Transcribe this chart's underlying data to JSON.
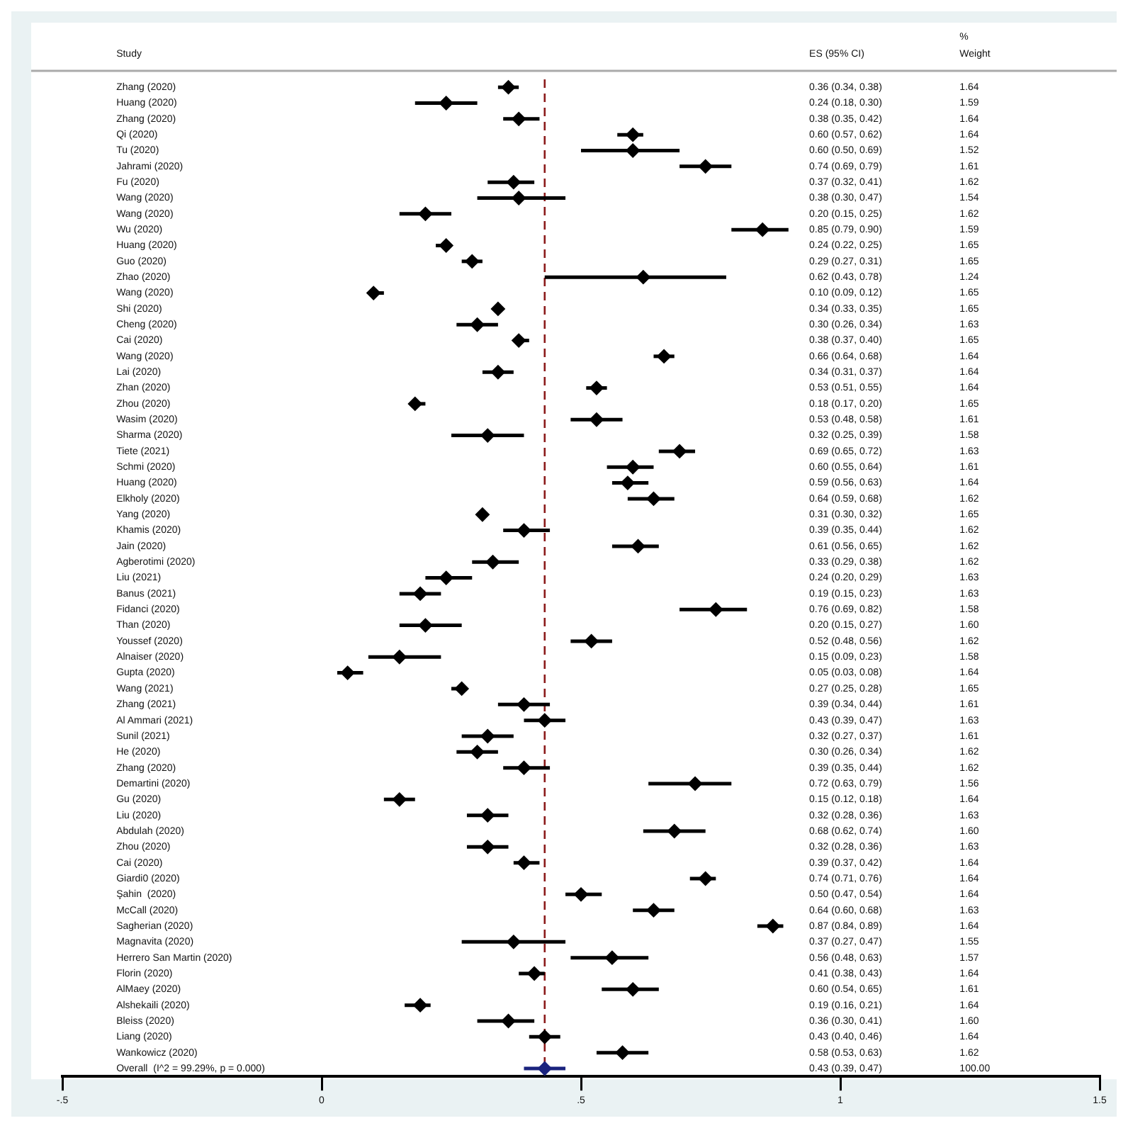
{
  "chart_data": {
    "type": "scatter",
    "orientation": "horizontal",
    "categories": [
      "Zhang (2020)",
      "Huang (2020)",
      "Zhang (2020)",
      "Qi (2020)",
      "Tu (2020)",
      "Jahrami (2020)",
      "Fu (2020)",
      "Wang (2020)",
      "Wang (2020)",
      "Wu (2020)",
      "Huang (2020)",
      "Guo (2020)",
      "Zhao (2020)",
      "Wang (2020)",
      "Shi (2020)",
      "Cheng (2020)",
      "Cai (2020)",
      "Wang (2020)",
      "Lai (2020)",
      "Zhan (2020)",
      "Zhou (2020)",
      "Wasim (2020)",
      "Sharma (2020)",
      "Tiete (2021)",
      "Schmi (2020)",
      "Huang (2020)",
      "Elkholy (2020)",
      "Yang (2020)",
      "Khamis (2020)",
      "Jain (2020)",
      "Agberotimi (2020)",
      "Liu (2021)",
      "Banus (2021)",
      "Fidanci (2020)",
      "Than (2020)",
      "Youssef (2020)",
      "Alnaiser (2020)",
      "Gupta (2020)",
      "Wang (2021)",
      "Zhang (2021)",
      "Al Ammari (2021)",
      "Sunil (2021)",
      "He (2020)",
      "Zhang (2020)",
      "Demartini (2020)",
      "Gu (2020)",
      "Liu (2020)",
      "Abdulah (2020)",
      "Zhou (2020)",
      "Cai (2020)",
      "Giardi0 (2020)",
      "Şahin  (2020)",
      "McCall (2020)",
      "Sagherian (2020)",
      "Magnavita (2020)",
      "Herrero San Martin (2020)",
      "Florin (2020)",
      "AlMaey (2020)",
      "Alshekaili (2020)",
      "Bleiss (2020)",
      "Liang (2020)",
      "Wankowicz (2020)",
      "Overall  (I^2 = 99.29%, p = 0.000)"
    ],
    "series": [
      {
        "values": [
          0.36,
          0.24,
          0.38,
          0.6,
          0.6,
          0.74,
          0.37,
          0.38,
          0.2,
          0.85,
          0.24,
          0.29,
          0.62,
          0.1,
          0.34,
          0.3,
          0.38,
          0.66,
          0.34,
          0.53,
          0.18,
          0.53,
          0.32,
          0.69,
          0.6,
          0.59,
          0.64,
          0.31,
          0.39,
          0.61,
          0.33,
          0.24,
          0.19,
          0.76,
          0.2,
          0.52,
          0.15,
          0.05,
          0.27,
          0.39,
          0.43,
          0.32,
          0.3,
          0.39,
          0.72,
          0.15,
          0.32,
          0.68,
          0.32,
          0.39,
          0.74,
          0.5,
          0.64,
          0.87,
          0.37,
          0.56,
          0.41,
          0.6,
          0.19,
          0.36,
          0.43,
          0.58,
          0.43
        ],
        "errors": [
          [
            0.34,
            0.38
          ],
          [
            0.18,
            0.3
          ],
          [
            0.35,
            0.42
          ],
          [
            0.57,
            0.62
          ],
          [
            0.5,
            0.69
          ],
          [
            0.69,
            0.79
          ],
          [
            0.32,
            0.41
          ],
          [
            0.3,
            0.47
          ],
          [
            0.15,
            0.25
          ],
          [
            0.79,
            0.9
          ],
          [
            0.22,
            0.25
          ],
          [
            0.27,
            0.31
          ],
          [
            0.43,
            0.78
          ],
          [
            0.09,
            0.12
          ],
          [
            0.33,
            0.35
          ],
          [
            0.26,
            0.34
          ],
          [
            0.37,
            0.4
          ],
          [
            0.64,
            0.68
          ],
          [
            0.31,
            0.37
          ],
          [
            0.51,
            0.55
          ],
          [
            0.17,
            0.2
          ],
          [
            0.48,
            0.58
          ],
          [
            0.25,
            0.39
          ],
          [
            0.65,
            0.72
          ],
          [
            0.55,
            0.64
          ],
          [
            0.56,
            0.63
          ],
          [
            0.59,
            0.68
          ],
          [
            0.3,
            0.32
          ],
          [
            0.35,
            0.44
          ],
          [
            0.56,
            0.65
          ],
          [
            0.29,
            0.38
          ],
          [
            0.2,
            0.29
          ],
          [
            0.15,
            0.23
          ],
          [
            0.69,
            0.82
          ],
          [
            0.15,
            0.27
          ],
          [
            0.48,
            0.56
          ],
          [
            0.09,
            0.23
          ],
          [
            0.03,
            0.08
          ],
          [
            0.25,
            0.28
          ],
          [
            0.34,
            0.44
          ],
          [
            0.39,
            0.47
          ],
          [
            0.27,
            0.37
          ],
          [
            0.26,
            0.34
          ],
          [
            0.35,
            0.44
          ],
          [
            0.63,
            0.79
          ],
          [
            0.12,
            0.18
          ],
          [
            0.28,
            0.36
          ],
          [
            0.62,
            0.74
          ],
          [
            0.28,
            0.36
          ],
          [
            0.37,
            0.42
          ],
          [
            0.71,
            0.76
          ],
          [
            0.47,
            0.54
          ],
          [
            0.6,
            0.68
          ],
          [
            0.84,
            0.89
          ],
          [
            0.27,
            0.47
          ],
          [
            0.48,
            0.63
          ],
          [
            0.38,
            0.43
          ],
          [
            0.54,
            0.65
          ],
          [
            0.16,
            0.21
          ],
          [
            0.3,
            0.41
          ],
          [
            0.4,
            0.46
          ],
          [
            0.53,
            0.63
          ],
          [
            0.39,
            0.47
          ]
        ],
        "colors": [
          "#000000",
          "#000000",
          "#000000",
          "#000000",
          "#000000",
          "#000000",
          "#000000",
          "#000000",
          "#000000",
          "#000000",
          "#000000",
          "#000000",
          "#000000",
          "#000000",
          "#000000",
          "#000000",
          "#000000",
          "#000000",
          "#000000",
          "#000000",
          "#000000",
          "#000000",
          "#000000",
          "#000000",
          "#000000",
          "#000000",
          "#000000",
          "#000000",
          "#000000",
          "#000000",
          "#000000",
          "#000000",
          "#000000",
          "#000000",
          "#000000",
          "#000000",
          "#000000",
          "#000000",
          "#000000",
          "#000000",
          "#000000",
          "#000000",
          "#000000",
          "#000000",
          "#000000",
          "#000000",
          "#000000",
          "#000000",
          "#000000",
          "#000000",
          "#000000",
          "#000000",
          "#000000",
          "#000000",
          "#000000",
          "#000000",
          "#000000",
          "#000000",
          "#000000",
          "#000000",
          "#000000",
          "#000000",
          "#1a237e"
        ],
        "value_labels": [
          [
            "0.36 (0.34, 0.38)",
            "1.64"
          ],
          [
            "0.24 (0.18, 0.30)",
            "1.59"
          ],
          [
            "0.38 (0.35, 0.42)",
            "1.64"
          ],
          [
            "0.60 (0.57, 0.62)",
            "1.64"
          ],
          [
            "0.60 (0.50, 0.69)",
            "1.52"
          ],
          [
            "0.74 (0.69, 0.79)",
            "1.61"
          ],
          [
            "0.37 (0.32, 0.41)",
            "1.62"
          ],
          [
            "0.38 (0.30, 0.47)",
            "1.54"
          ],
          [
            "0.20 (0.15, 0.25)",
            "1.62"
          ],
          [
            "0.85 (0.79, 0.90)",
            "1.59"
          ],
          [
            "0.24 (0.22, 0.25)",
            "1.65"
          ],
          [
            "0.29 (0.27, 0.31)",
            "1.65"
          ],
          [
            "0.62 (0.43, 0.78)",
            "1.24"
          ],
          [
            "0.10 (0.09, 0.12)",
            "1.65"
          ],
          [
            "0.34 (0.33, 0.35)",
            "1.65"
          ],
          [
            "0.30 (0.26, 0.34)",
            "1.63"
          ],
          [
            "0.38 (0.37, 0.40)",
            "1.65"
          ],
          [
            "0.66 (0.64, 0.68)",
            "1.64"
          ],
          [
            "0.34 (0.31, 0.37)",
            "1.64"
          ],
          [
            "0.53 (0.51, 0.55)",
            "1.64"
          ],
          [
            "0.18 (0.17, 0.20)",
            "1.65"
          ],
          [
            "0.53 (0.48, 0.58)",
            "1.61"
          ],
          [
            "0.32 (0.25, 0.39)",
            "1.58"
          ],
          [
            "0.69 (0.65, 0.72)",
            "1.63"
          ],
          [
            "0.60 (0.55, 0.64)",
            "1.61"
          ],
          [
            "0.59 (0.56, 0.63)",
            "1.64"
          ],
          [
            "0.64 (0.59, 0.68)",
            "1.62"
          ],
          [
            "0.31 (0.30, 0.32)",
            "1.65"
          ],
          [
            "0.39 (0.35, 0.44)",
            "1.62"
          ],
          [
            "0.61 (0.56, 0.65)",
            "1.62"
          ],
          [
            "0.33 (0.29, 0.38)",
            "1.62"
          ],
          [
            "0.24 (0.20, 0.29)",
            "1.63"
          ],
          [
            "0.19 (0.15, 0.23)",
            "1.63"
          ],
          [
            "0.76 (0.69, 0.82)",
            "1.58"
          ],
          [
            "0.20 (0.15, 0.27)",
            "1.60"
          ],
          [
            "0.52 (0.48, 0.56)",
            "1.62"
          ],
          [
            "0.15 (0.09, 0.23)",
            "1.58"
          ],
          [
            "0.05 (0.03, 0.08)",
            "1.64"
          ],
          [
            "0.27 (0.25, 0.28)",
            "1.65"
          ],
          [
            "0.39 (0.34, 0.44)",
            "1.61"
          ],
          [
            "0.43 (0.39, 0.47)",
            "1.63"
          ],
          [
            "0.32 (0.27, 0.37)",
            "1.61"
          ],
          [
            "0.30 (0.26, 0.34)",
            "1.62"
          ],
          [
            "0.39 (0.35, 0.44)",
            "1.62"
          ],
          [
            "0.72 (0.63, 0.79)",
            "1.56"
          ],
          [
            "0.15 (0.12, 0.18)",
            "1.64"
          ],
          [
            "0.32 (0.28, 0.36)",
            "1.63"
          ],
          [
            "0.68 (0.62, 0.74)",
            "1.60"
          ],
          [
            "0.32 (0.28, 0.36)",
            "1.63"
          ],
          [
            "0.39 (0.37, 0.42)",
            "1.64"
          ],
          [
            "0.74 (0.71, 0.76)",
            "1.64"
          ],
          [
            "0.50 (0.47, 0.54)",
            "1.64"
          ],
          [
            "0.64 (0.60, 0.68)",
            "1.63"
          ],
          [
            "0.87 (0.84, 0.89)",
            "1.64"
          ],
          [
            "0.37 (0.27, 0.47)",
            "1.55"
          ],
          [
            "0.56 (0.48, 0.63)",
            "1.57"
          ],
          [
            "0.41 (0.38, 0.43)",
            "1.64"
          ],
          [
            "0.60 (0.54, 0.65)",
            "1.61"
          ],
          [
            "0.19 (0.16, 0.21)",
            "1.64"
          ],
          [
            "0.36 (0.30, 0.41)",
            "1.60"
          ],
          [
            "0.43 (0.40, 0.46)",
            "1.64"
          ],
          [
            "0.58 (0.53, 0.63)",
            "1.62"
          ],
          [
            "0.43 (0.39, 0.47)",
            "100.00"
          ]
        ]
      }
    ],
    "xlim": [
      -0.5,
      1.5
    ],
    "xticks": [
      {
        "value": -0.5,
        "label": "-.5"
      },
      0,
      {
        "value": 0.5,
        "label": ".5"
      },
      1,
      1.5
    ],
    "ref_lines": [
      {
        "axis": "x",
        "value": 0.43,
        "color": "#8b1a1a",
        "line_style": "dashed"
      }
    ],
    "annotations": [
      "Study",
      "ES (95% CI)",
      "%",
      "Weight"
    ],
    "marker": "diamond"
  }
}
